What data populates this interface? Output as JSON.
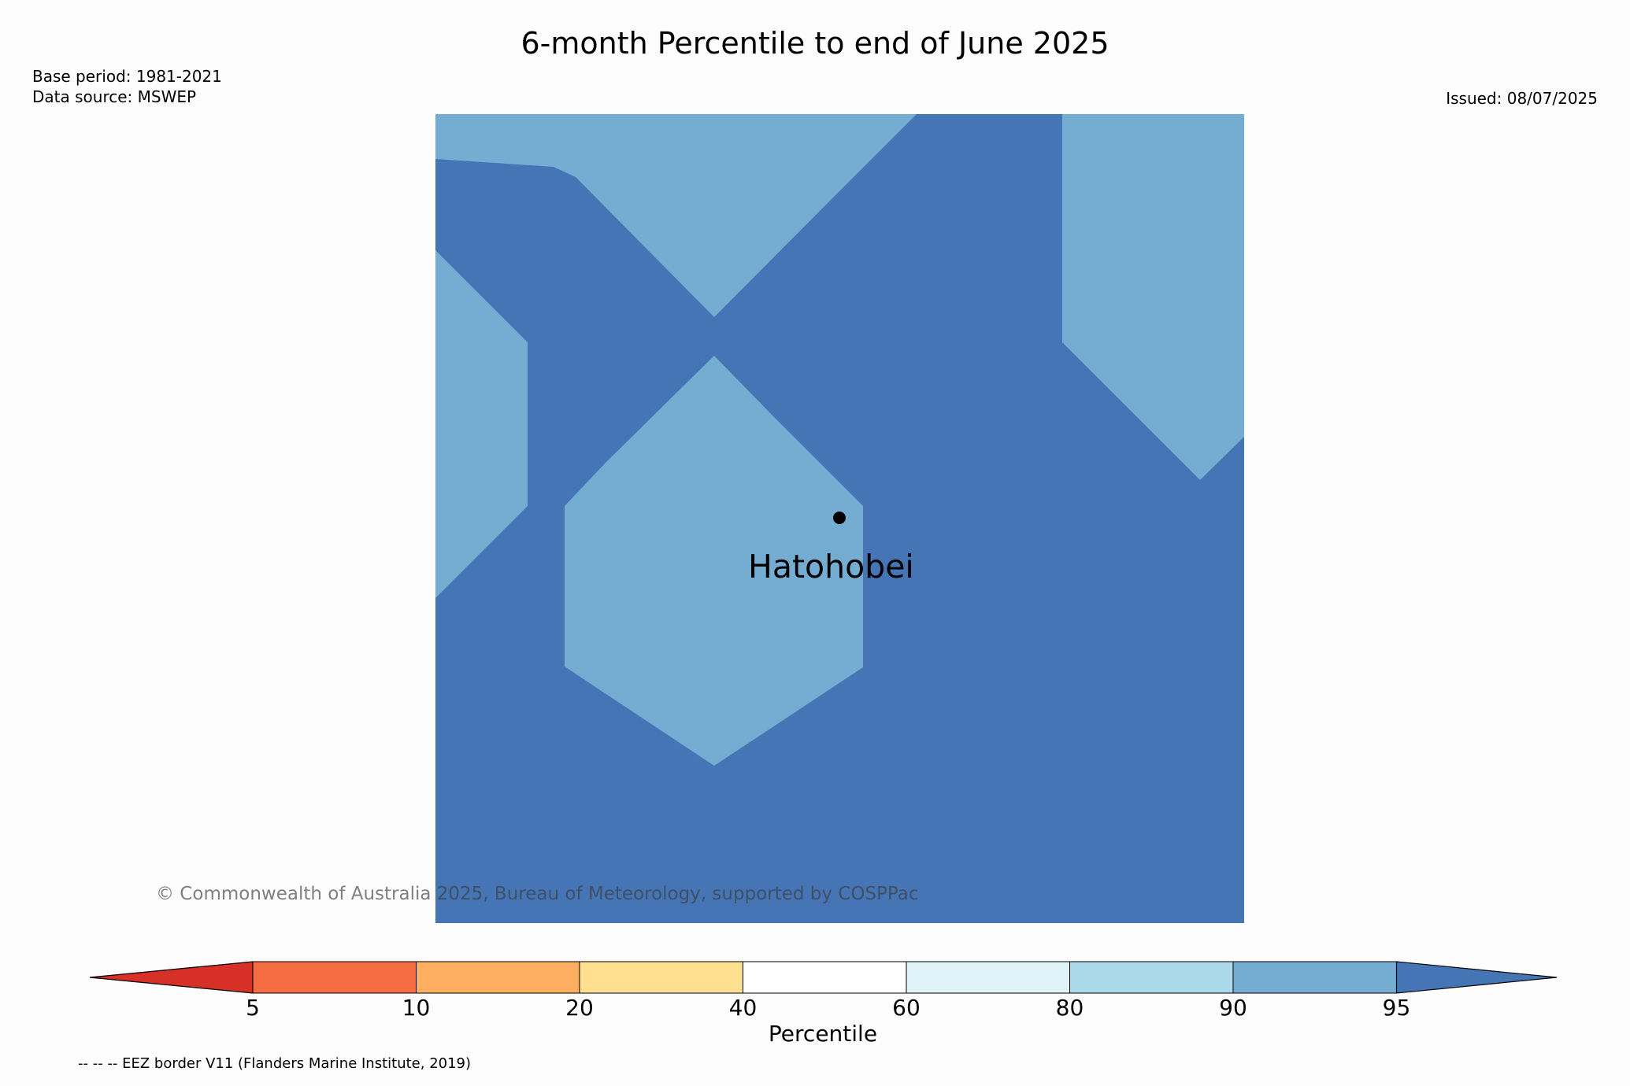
{
  "title": "6-month Percentile to end of June 2025",
  "header": {
    "base_period": "Base period: 1981-2021",
    "data_source": "Data source: MSWEP",
    "issued": "Issued: 08/07/2025"
  },
  "map": {
    "place_label": "Hatohobei",
    "copyright": "© Commonwealth of Australia 2025, Bureau of Meteorology, supported by COSPPac",
    "colors": {
      "above_95": "#4575b4",
      "p90_95": "#74add1"
    }
  },
  "colorbar": {
    "label": "Percentile",
    "ticks": [
      "5",
      "10",
      "20",
      "40",
      "60",
      "80",
      "90",
      "95"
    ],
    "colors": [
      "#d73027",
      "#f46d43",
      "#fdae61",
      "#fee090",
      "#ffffff",
      "#e0f3f8",
      "#abd9e9",
      "#74add1",
      "#4575b4"
    ]
  },
  "footnote": "-- -- -- EEZ border V11 (Flanders Marine Institute, 2019)"
}
